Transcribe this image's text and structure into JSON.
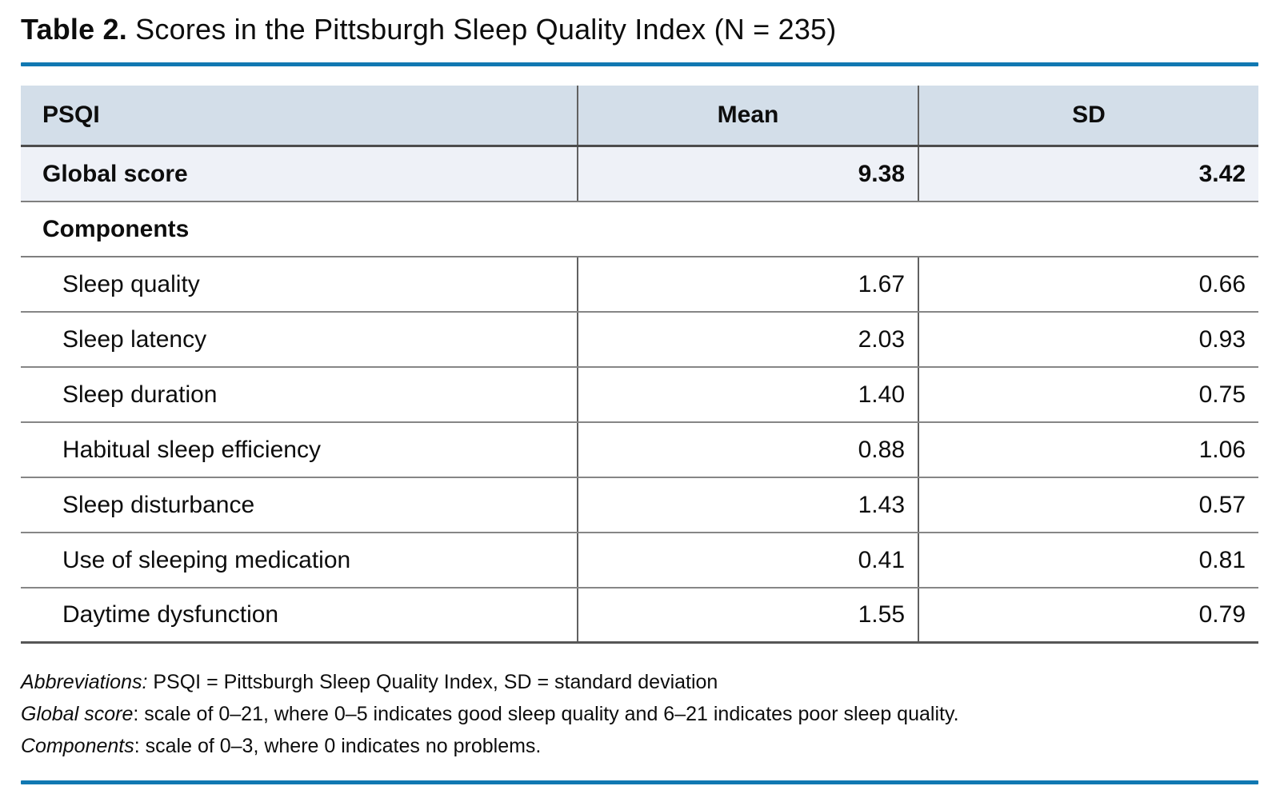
{
  "title": {
    "label": "Table 2.",
    "text": " Scores in the Pittsburgh Sleep Quality Index (N = 235)"
  },
  "colors": {
    "accent": "#1178b2",
    "header_bg": "#d3dee9",
    "global_row_bg": "#eef1f7"
  },
  "table": {
    "columns": [
      "PSQI",
      "Mean",
      "SD"
    ],
    "global_row": {
      "label": "Global score",
      "mean": "9.38",
      "sd": "3.42"
    },
    "section_label": "Components",
    "rows": [
      {
        "label": "Sleep quality",
        "mean": "1.67",
        "sd": "0.66"
      },
      {
        "label": "Sleep latency",
        "mean": "2.03",
        "sd": "0.93"
      },
      {
        "label": "Sleep duration",
        "mean": "1.40",
        "sd": "0.75"
      },
      {
        "label": "Habitual sleep efficiency",
        "mean": "0.88",
        "sd": "1.06"
      },
      {
        "label": "Sleep disturbance",
        "mean": "1.43",
        "sd": "0.57"
      },
      {
        "label": "Use of sleeping medication",
        "mean": "0.41",
        "sd": "0.81"
      },
      {
        "label": "Daytime dysfunction",
        "mean": "1.55",
        "sd": "0.79"
      }
    ]
  },
  "footnotes": [
    {
      "lead": "Abbreviations:",
      "text": " PSQI = Pittsburgh Sleep Quality Index, SD = standard deviation"
    },
    {
      "lead": "Global score",
      "text": ": scale of 0–21, where 0–5 indicates good sleep quality and 6–21 indicates poor sleep quality."
    },
    {
      "lead": "Components",
      "text": ": scale of 0–3, where 0 indicates no problems."
    }
  ]
}
